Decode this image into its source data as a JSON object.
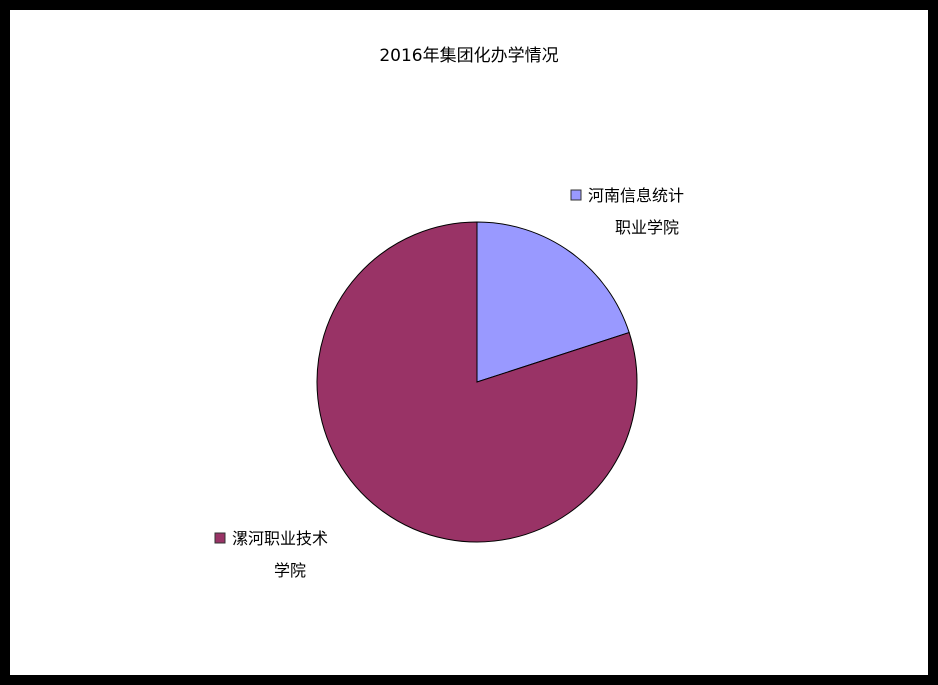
{
  "chart_data": {
    "type": "pie",
    "title": "2016年集团化办学情况",
    "slices": [
      {
        "label_lines": [
          "河南信息统计",
          "职业学院"
        ],
        "value": 20,
        "color": "#9999ff"
      },
      {
        "label_lines": [
          "漯河职业技术",
          "学院"
        ],
        "value": 80,
        "color": "#993366"
      }
    ],
    "start_angle_deg": 0,
    "direction": "clockwise",
    "slice_stroke_color": "#000000"
  }
}
